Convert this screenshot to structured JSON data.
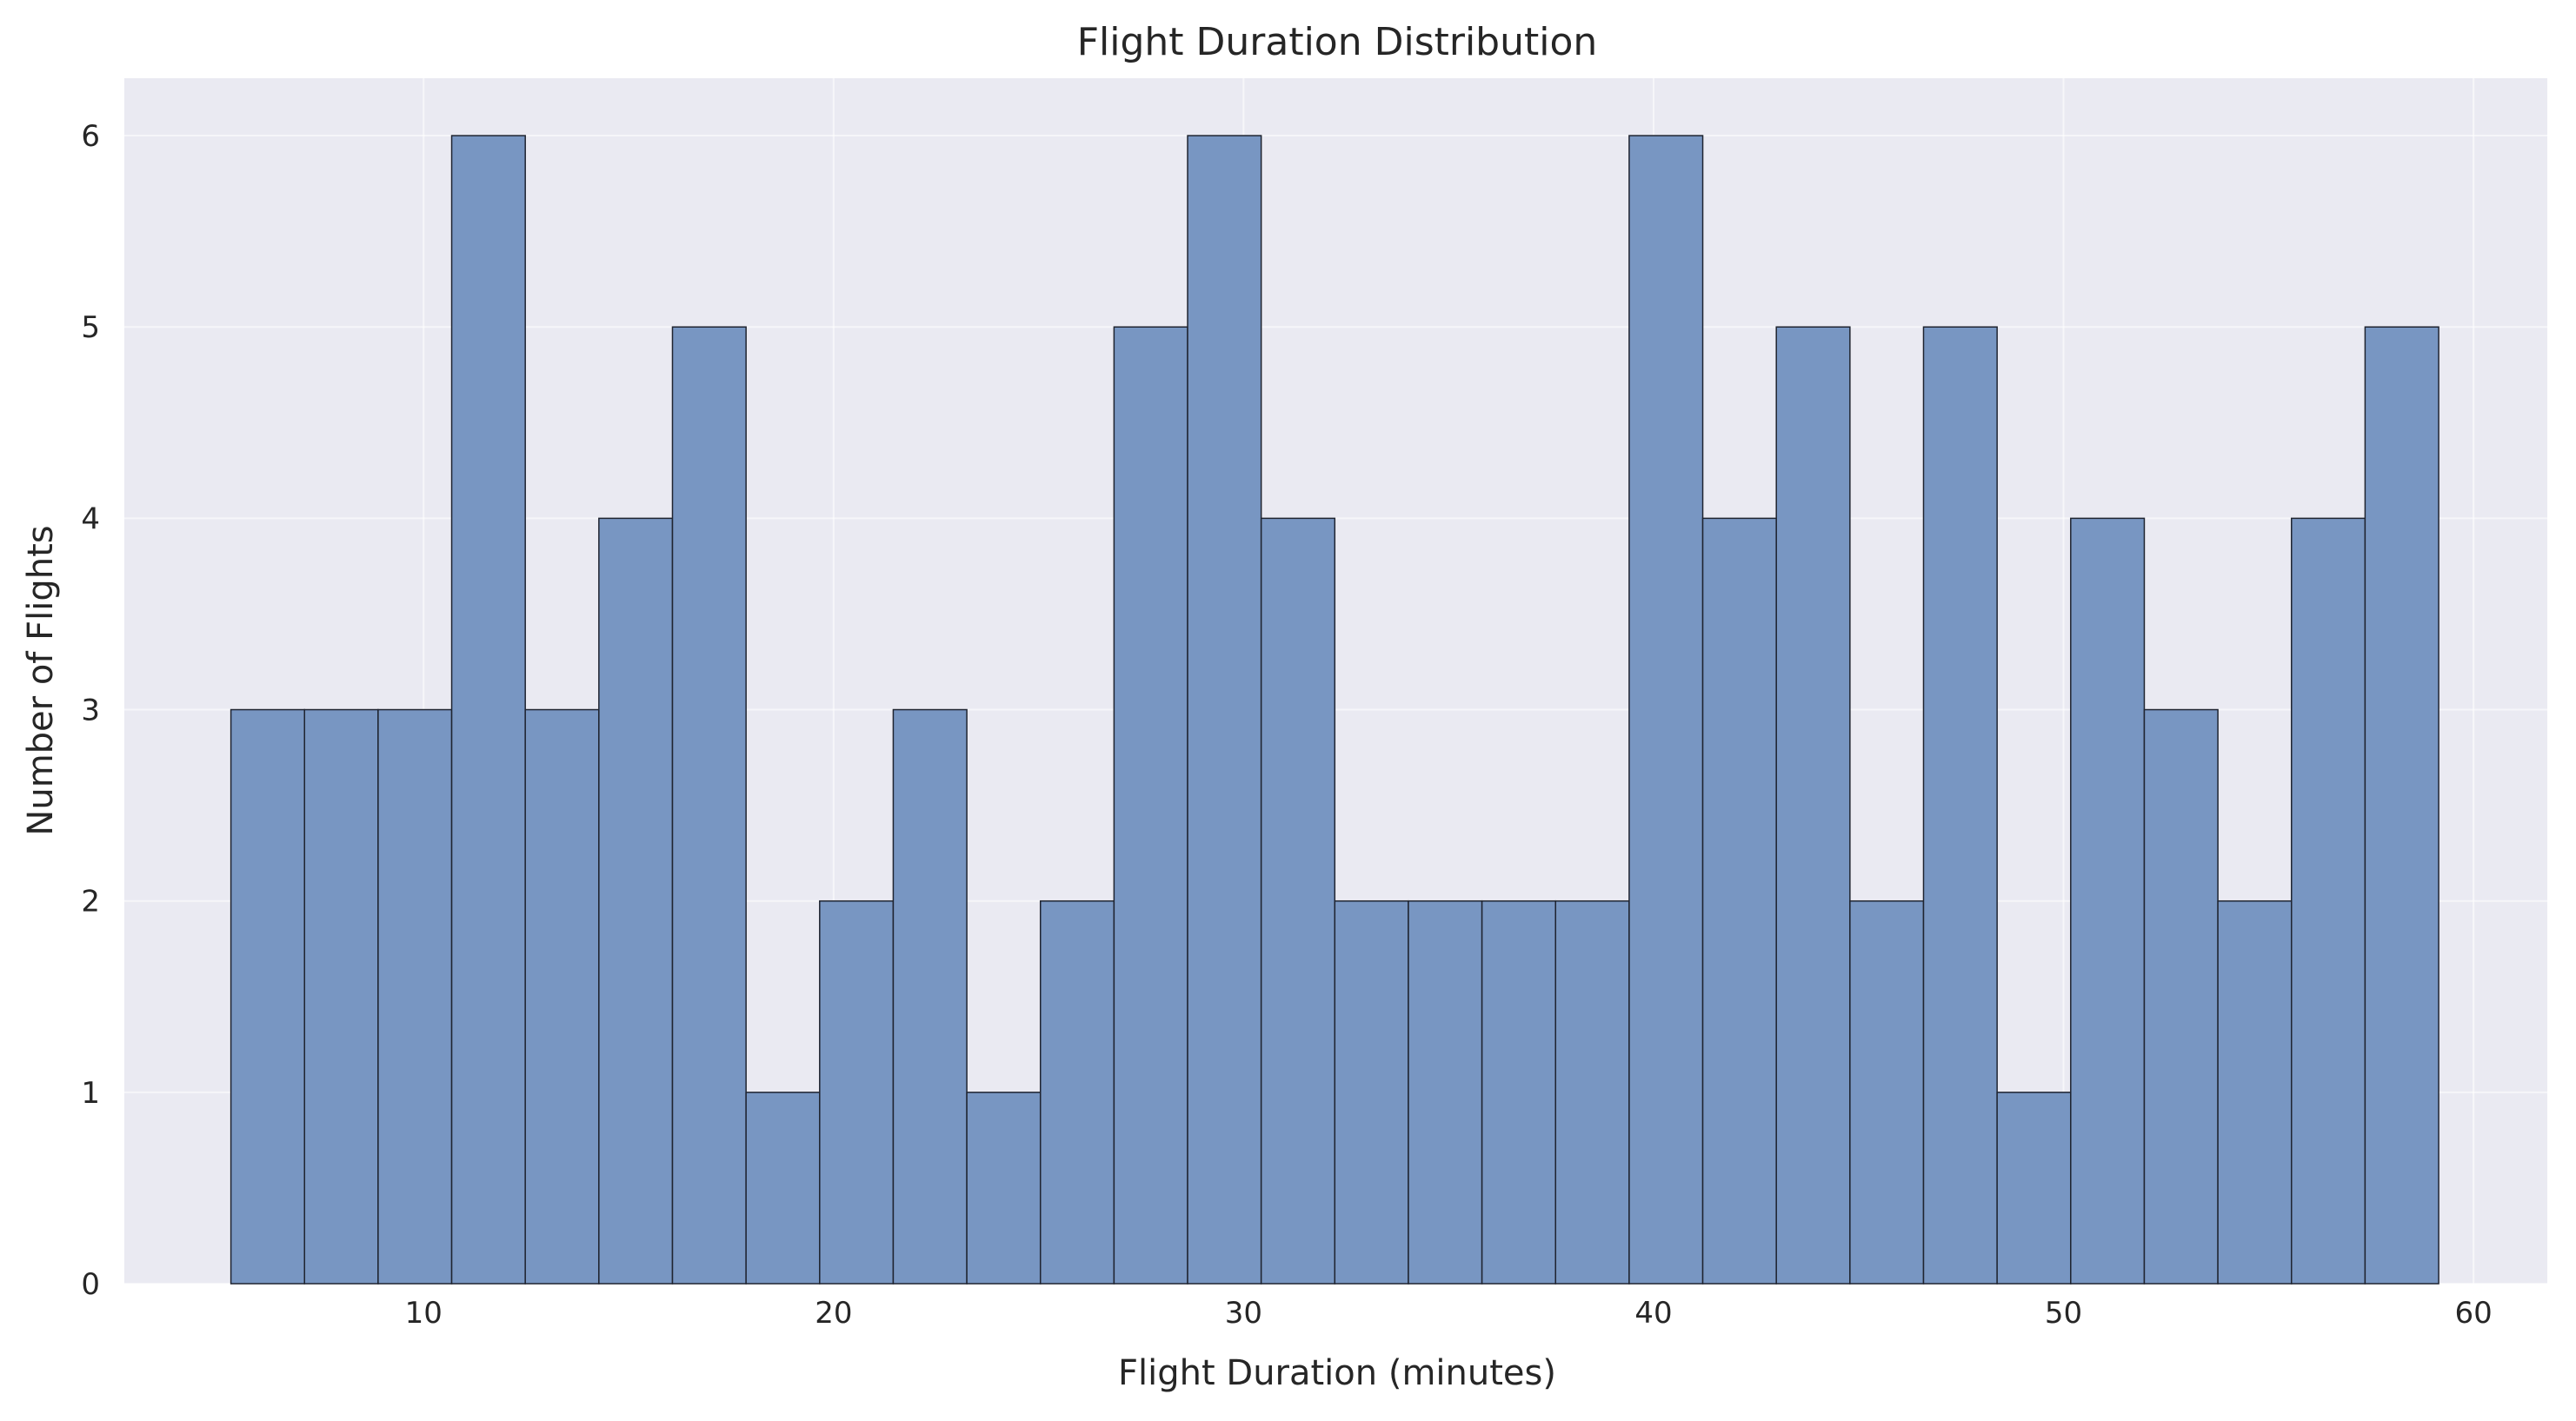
{
  "chart_data": {
    "type": "bar",
    "title": "Flight Duration Distribution",
    "xlabel": "Flight Duration (minutes)",
    "ylabel": "Number of Flights",
    "xlim": [
      2.7,
      61.8
    ],
    "ylim": [
      0,
      6.3
    ],
    "xticks": [
      10,
      20,
      30,
      40,
      50,
      60
    ],
    "yticks": [
      0,
      1,
      2,
      3,
      4,
      5,
      6
    ],
    "bin_start": 5.3,
    "bin_width": 1.795,
    "values": [
      3,
      3,
      3,
      6,
      3,
      4,
      5,
      1,
      2,
      3,
      1,
      2,
      5,
      6,
      4,
      2,
      2,
      2,
      2,
      6,
      4,
      5,
      2,
      5,
      1,
      4,
      3,
      2,
      4,
      5
    ],
    "bar_color": "#7896c2",
    "background": "#eaeaf2",
    "grid": true
  }
}
